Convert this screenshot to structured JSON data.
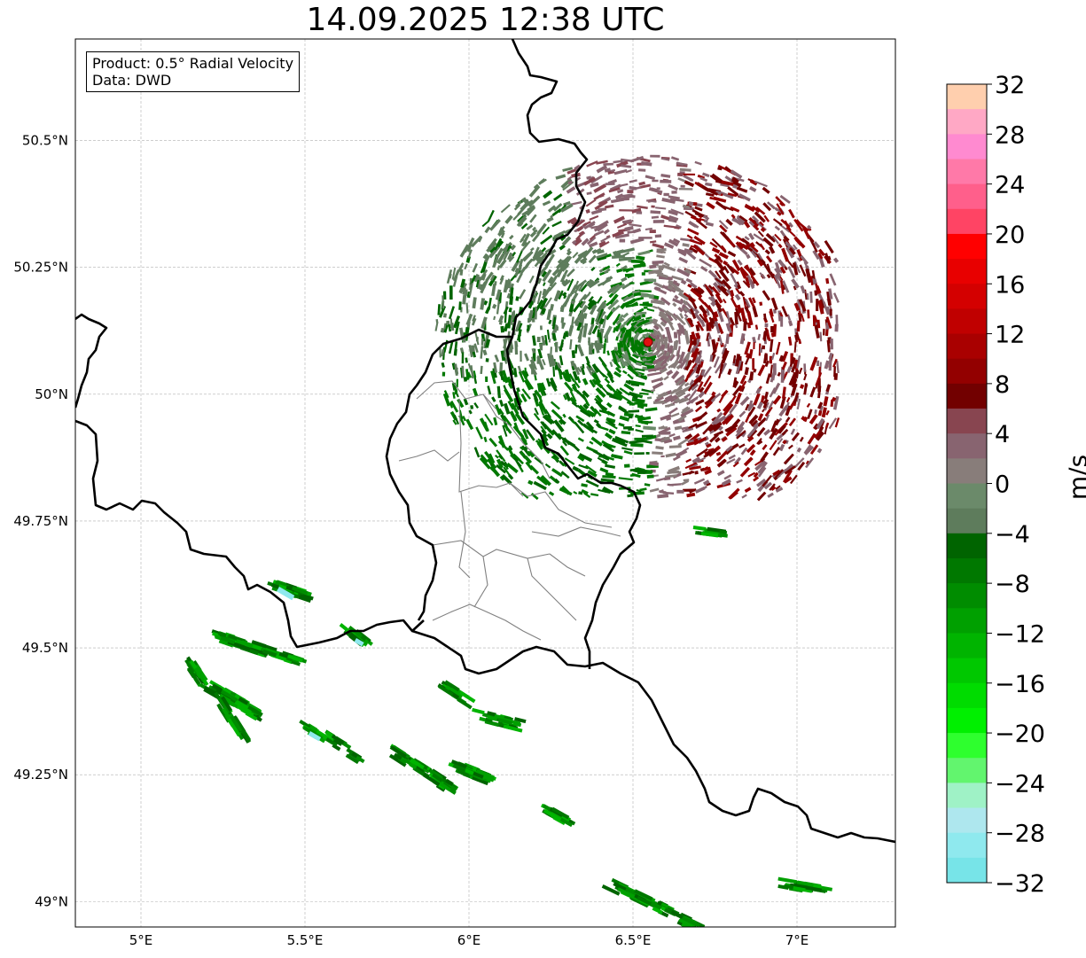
{
  "title": "14.09.2025 12:38 UTC",
  "info": {
    "product": "Product: 0.5° Radial Velocity",
    "data_source": "Data: DWD"
  },
  "map": {
    "lon_range": [
      4.8,
      7.3
    ],
    "lat_range": [
      48.95,
      50.7
    ],
    "lat_ticks": [
      "50.5°N",
      "50.25°N",
      "50°N",
      "49.75°N",
      "49.5°N",
      "49.25°N",
      "49°N"
    ],
    "lon_ticks": [
      "5°E",
      "5.5°E",
      "6°E",
      "6.5°E",
      "7°E"
    ],
    "gridlines": true,
    "radar_site": {
      "lon": 6.55,
      "lat": 50.11,
      "color": "#e01010"
    }
  },
  "colorbar": {
    "label": "m/s",
    "min": -32,
    "max": 32,
    "tick_labels": [
      "32",
      "28",
      "24",
      "20",
      "16",
      "12",
      "8",
      "4",
      "0",
      "−4",
      "−8",
      "−12",
      "−16",
      "−20",
      "−24",
      "−28",
      "−32"
    ],
    "colors_top_to_bottom": [
      "#ffcfae",
      "#ffa8c5",
      "#ff8ad0",
      "#ff79a8",
      "#ff5f8b",
      "#ff4464",
      "#ff0000",
      "#e80000",
      "#d40000",
      "#c00000",
      "#a90000",
      "#930000",
      "#720000",
      "#884550",
      "#886470",
      "#887d7a",
      "#6b8a6a",
      "#5e7c5c",
      "#006400",
      "#007800",
      "#008c00",
      "#00a000",
      "#00b400",
      "#00c800",
      "#00dc00",
      "#00f000",
      "#2eff2e",
      "#62f56e",
      "#9ff2c6",
      "#aee7ee",
      "#8fe9ee",
      "#77e4e8"
    ]
  }
}
